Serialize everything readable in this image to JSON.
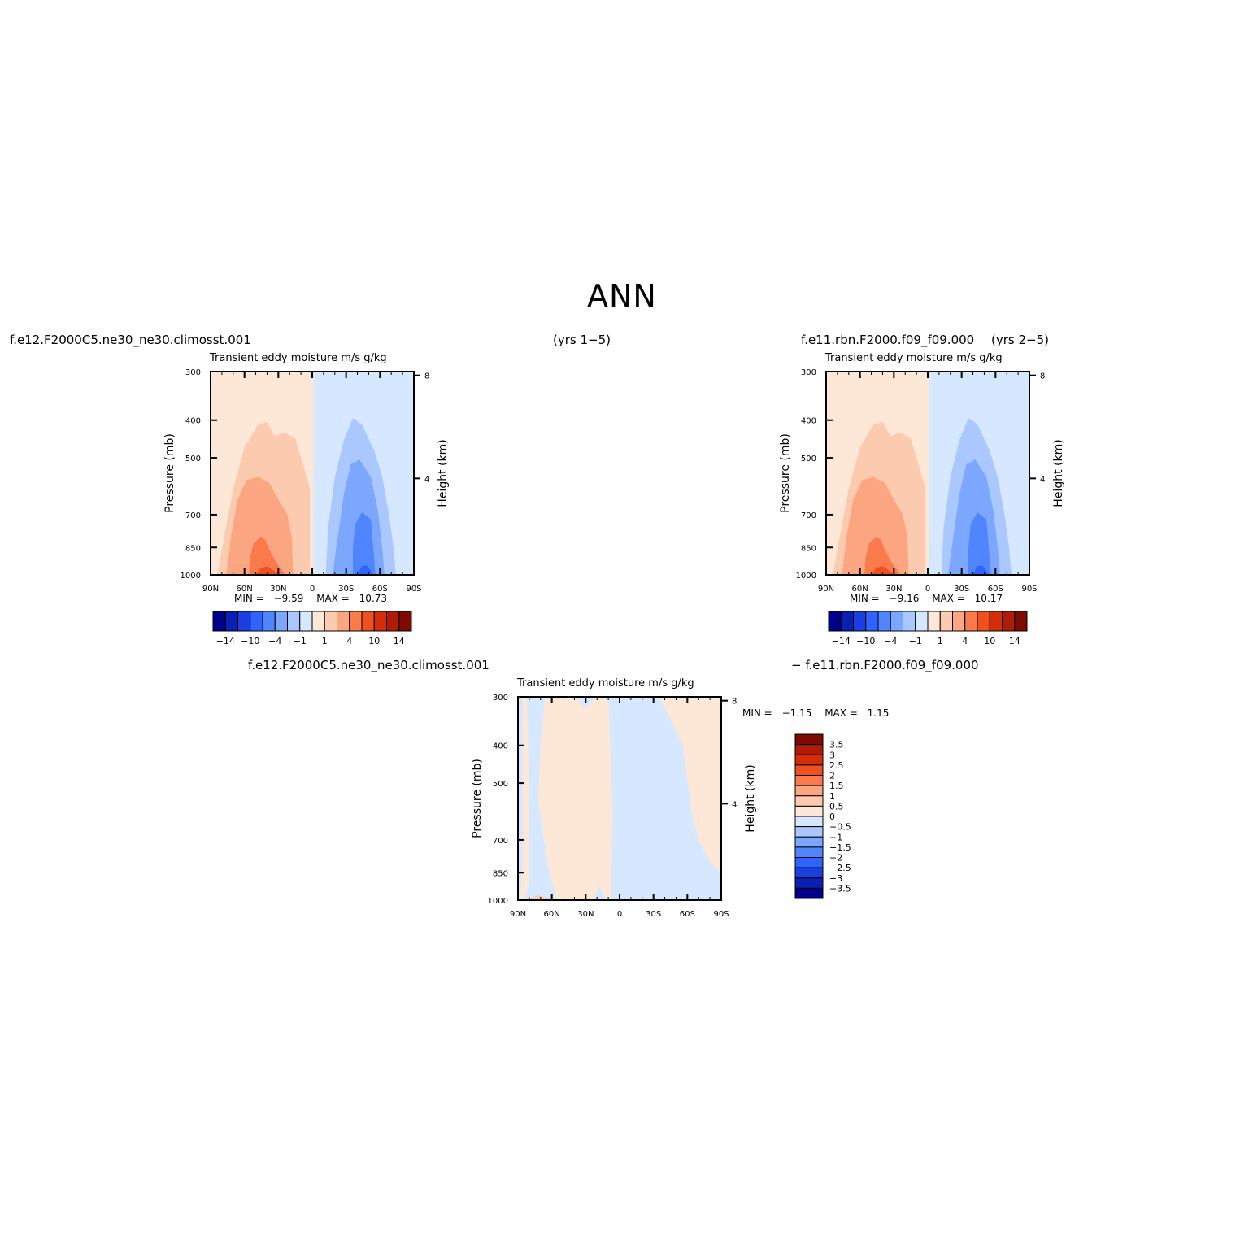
{
  "page_title": "ANN",
  "panels": [
    {
      "case_name": "f.e12.F2000C5.ne30_ne30.climosst.001",
      "years": "(yrs 1−5)",
      "variable_label": "Transient eddy moisture m/s g/kg",
      "stats": {
        "min_label": "MIN =",
        "min_value": "−9.59",
        "max_label": "MAX =",
        "max_value": "10.73"
      }
    },
    {
      "case_name": "f.e11.rbn.F2000.f09_f09.000",
      "years": "(yrs 2−5)",
      "variable_label": "Transient eddy moisture m/s g/kg",
      "stats": {
        "min_label": "MIN =",
        "min_value": "−9.16",
        "max_label": "MAX =",
        "max_value": "10.17"
      }
    },
    {
      "case_name": "f.e12.F2000C5.ne30_ne30.climosst.001",
      "minus_case": "− f.e11.rbn.F2000.f09_f09.000",
      "variable_label": "Transient eddy moisture m/s g/kg",
      "stats": {
        "min_label": "MIN =",
        "min_value": "−1.15",
        "max_label": "MAX =",
        "max_value": "1.15"
      }
    }
  ],
  "chart_data": [
    {
      "type": "heatmap",
      "title": "f.e12.F2000C5.ne30_ne30.climosst.001",
      "subtitle": "Transient eddy moisture m/s g/kg",
      "ylabel": "Pressure (mb)",
      "ylabel_right": "Height (km)",
      "x_ticks": [
        "90N",
        "60N",
        "30N",
        "0",
        "30S",
        "60S",
        "90S"
      ],
      "x_range": [
        90,
        -90
      ],
      "y_ticks": [
        300,
        400,
        500,
        700,
        850,
        1000
      ],
      "y_range": [
        1000,
        300
      ],
      "y_scale": "log",
      "right_ticks": [
        8,
        4
      ],
      "colorbar": {
        "orientation": "horizontal",
        "colors": [
          "#00008c",
          "#0a20b4",
          "#1a3ee0",
          "#2f62ff",
          "#4f86ff",
          "#7ba7ff",
          "#aac8ff",
          "#d6e8ff",
          "#fde7d6",
          "#fccaaf",
          "#fba581",
          "#fa7a4c",
          "#f0501e",
          "#d42d0a",
          "#b01b06",
          "#7e0a03"
        ],
        "tick_labels": [
          "−14",
          "−10",
          "−4",
          "−1",
          "1",
          "4",
          "10",
          "14"
        ]
      },
      "min": -9.59,
      "max": 10.73,
      "contour_levels": [
        -14,
        -12,
        -10,
        -7,
        -4,
        -2,
        -1,
        0,
        1,
        2,
        4,
        7,
        10,
        12,
        14
      ]
    },
    {
      "type": "heatmap",
      "title": "f.e11.rbn.F2000.f09_f09.000",
      "subtitle": "Transient eddy moisture m/s g/kg",
      "ylabel": "Pressure (mb)",
      "ylabel_right": "Height (km)",
      "x_ticks": [
        "90N",
        "60N",
        "30N",
        "0",
        "30S",
        "60S",
        "90S"
      ],
      "x_range": [
        90,
        -90
      ],
      "y_ticks": [
        300,
        400,
        500,
        700,
        850,
        1000
      ],
      "y_range": [
        1000,
        300
      ],
      "y_scale": "log",
      "right_ticks": [
        8,
        4
      ],
      "colorbar": {
        "orientation": "horizontal",
        "colors": [
          "#00008c",
          "#0a20b4",
          "#1a3ee0",
          "#2f62ff",
          "#4f86ff",
          "#7ba7ff",
          "#aac8ff",
          "#d6e8ff",
          "#fde7d6",
          "#fccaaf",
          "#fba581",
          "#fa7a4c",
          "#f0501e",
          "#d42d0a",
          "#b01b06",
          "#7e0a03"
        ],
        "tick_labels": [
          "−14",
          "−10",
          "−4",
          "−1",
          "1",
          "4",
          "10",
          "14"
        ]
      },
      "min": -9.16,
      "max": 10.17
    },
    {
      "type": "heatmap",
      "title": "f.e12.F2000C5.ne30_ne30.climosst.001 − f.e11.rbn.F2000.f09_f09.000",
      "subtitle": "Transient eddy moisture m/s g/kg",
      "ylabel": "Pressure (mb)",
      "ylabel_right": "Height (km)",
      "x_ticks": [
        "90N",
        "60N",
        "30N",
        "0",
        "30S",
        "60S",
        "90S"
      ],
      "x_range": [
        90,
        -90
      ],
      "y_ticks": [
        300,
        400,
        500,
        700,
        850,
        1000
      ],
      "y_range": [
        1000,
        300
      ],
      "y_scale": "log",
      "right_ticks": [
        8,
        4
      ],
      "colorbar": {
        "orientation": "vertical",
        "colors": [
          "#00008c",
          "#0a20b4",
          "#1a3ee0",
          "#2f62ff",
          "#4f86ff",
          "#7ba7ff",
          "#aac8ff",
          "#d6e8ff",
          "#fde7d6",
          "#fccaaf",
          "#fba581",
          "#fa7a4c",
          "#f0501e",
          "#d42d0a",
          "#b01b06",
          "#7e0a03"
        ],
        "tick_labels": [
          "3.5",
          "3",
          "2.5",
          "2",
          "1.5",
          "1",
          "0.5",
          "0",
          "−0.5",
          "−1",
          "−1.5",
          "−2",
          "−2.5",
          "−3",
          "−3.5"
        ]
      },
      "min": -1.15,
      "max": 1.15
    }
  ]
}
